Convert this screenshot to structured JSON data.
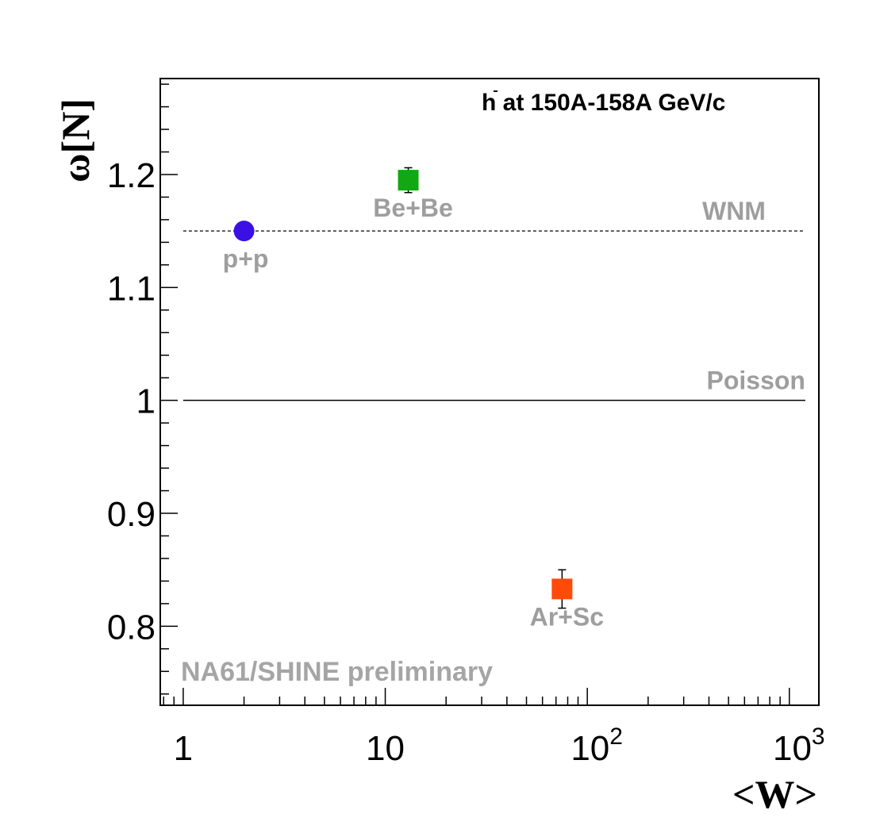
{
  "chart_data": {
    "type": "scatter",
    "title": "h̄ at 150A-158A GeV/c",
    "title_main": "h",
    "title_rest": " at 150A-158A GeV/c",
    "xlabel": "<W>",
    "ylabel": "ω[N]",
    "x_scale": "log",
    "xlim": [
      0.77,
      1400
    ],
    "ylim": [
      0.73,
      1.285
    ],
    "x_ticks": [
      {
        "value": 1,
        "base": "1",
        "exp": ""
      },
      {
        "value": 10,
        "base": "10",
        "exp": ""
      },
      {
        "value": 100,
        "base": "10",
        "exp": "2"
      },
      {
        "value": 1000,
        "base": "10",
        "exp": "3"
      }
    ],
    "y_ticks": [
      {
        "value": 0.8,
        "label": "0.8"
      },
      {
        "value": 0.9,
        "label": "0.9"
      },
      {
        "value": 1.0,
        "label": "1"
      },
      {
        "value": 1.1,
        "label": "1.1"
      },
      {
        "value": 1.2,
        "label": "1.2"
      }
    ],
    "points": [
      {
        "label": "p+p",
        "x": 2,
        "y": 1.15,
        "err": 0.0,
        "marker": "circle",
        "color": "#3a10e5"
      },
      {
        "label": "Be+Be",
        "x": 13,
        "y": 1.195,
        "err": 0.011,
        "marker": "square",
        "color": "#11a811"
      },
      {
        "label": "Ar+Sc",
        "x": 75,
        "y": 0.833,
        "err": 0.017,
        "marker": "square",
        "color": "#ff4a08"
      }
    ],
    "reference_lines": [
      {
        "label": "WNM",
        "y": 1.15,
        "style": "dashed"
      },
      {
        "label": "Poisson",
        "y": 1.0,
        "style": "solid"
      }
    ],
    "annotation": "NA61/SHINE preliminary",
    "grid": false,
    "legend": "none"
  }
}
